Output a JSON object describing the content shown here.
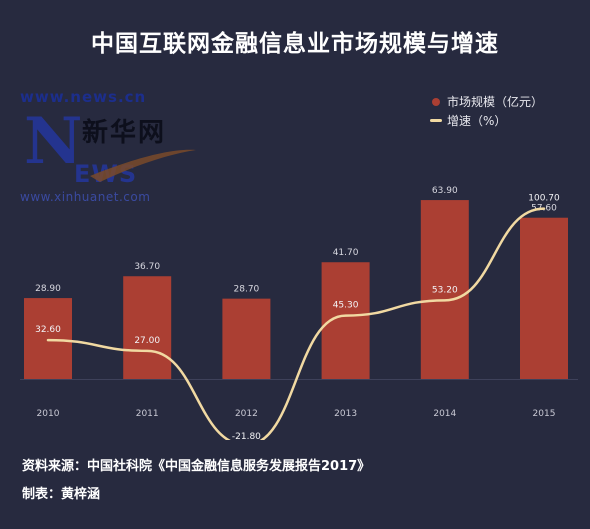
{
  "title": "中国互联网金融信息业市场规模与增速",
  "logo": {
    "url_top": "www.news.cn",
    "big_letter": "N",
    "name": "新华网",
    "letters": "EWS",
    "url_bottom": "www.xinhuanet.com"
  },
  "source": "资料来源：中国社科院《中国金融信息服务发展报告2017》",
  "maker": "制表：黄梓涵",
  "colors": {
    "background": "#272a3f",
    "bar": "#ab3f33",
    "line": "#f1d9a2",
    "axis_text": "#c9c9d4"
  },
  "chart_data": {
    "type": "bar",
    "title": "中国互联网金融信息业市场规模与增速",
    "categories": [
      "2010",
      "2011",
      "2012",
      "2013",
      "2014",
      "2015"
    ],
    "series": [
      {
        "name": "市场规模（亿元）",
        "type": "bar",
        "values": [
          28.9,
          36.7,
          28.7,
          41.7,
          63.9,
          57.6
        ],
        "labels": [
          "28.90",
          "36.70",
          "28.70",
          "41.70",
          "63.90",
          "57.60"
        ]
      },
      {
        "name": "增速（%）",
        "type": "line",
        "values": [
          32.6,
          27.0,
          -21.8,
          45.3,
          53.2,
          100.7
        ],
        "labels": [
          "32.60",
          "27.00",
          "-21.80",
          "45.30",
          "53.20",
          "100.70"
        ]
      }
    ],
    "legend_position": "top-right",
    "grid": false
  }
}
